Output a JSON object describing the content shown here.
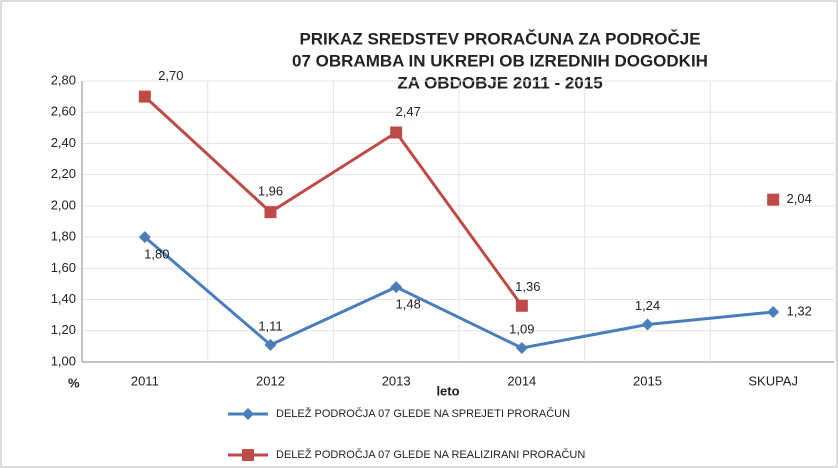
{
  "chart_data": {
    "type": "line",
    "title": [
      "PRIKAZ SREDSTEV PRORAČUNA ZA PODROČJE",
      "07 OBRAMBA IN UKREPI OB IZREDNIH DOGODKIH",
      "ZA OBDOBJE 2011 - 2015"
    ],
    "xlabel": "leto",
    "ylabel": "%",
    "categories": [
      "2011",
      "2012",
      "2013",
      "2014",
      "2015",
      "SKUPAJ"
    ],
    "series": [
      {
        "name": "DELEŽ PODROČJA 07 GLEDE NA SPREJETI PRORAČUN",
        "color": "#4a7ebb",
        "marker": "diamond",
        "values": [
          1.8,
          1.11,
          1.48,
          1.09,
          1.24,
          1.32
        ],
        "value_labels": [
          "1,80",
          "1,11",
          "1,48",
          "1,09",
          "1,24",
          "1,32"
        ]
      },
      {
        "name": "DELEŽ PODROČJA 07 GLEDE NA REALIZIRANI PRORAČUN",
        "color": "#be4b48",
        "marker": "square",
        "values": [
          2.7,
          1.96,
          2.47,
          1.36,
          null,
          2.04
        ],
        "value_labels": [
          "2,70",
          "1,96",
          "2,47",
          "1,36",
          null,
          "2,04"
        ]
      }
    ],
    "ylim": [
      1.0,
      2.8
    ],
    "yticks": [
      {
        "value": 1.0,
        "label": "1,00"
      },
      {
        "value": 1.2,
        "label": "1,20"
      },
      {
        "value": 1.4,
        "label": "1,40"
      },
      {
        "value": 1.6,
        "label": "1,60"
      },
      {
        "value": 1.8,
        "label": "1,80"
      },
      {
        "value": 2.0,
        "label": "2,00"
      },
      {
        "value": 2.2,
        "label": "2,20"
      },
      {
        "value": 2.4,
        "label": "2,40"
      },
      {
        "value": 2.6,
        "label": "2,60"
      },
      {
        "value": 2.8,
        "label": "2,80"
      }
    ],
    "grid": true,
    "legend": "bottom"
  }
}
